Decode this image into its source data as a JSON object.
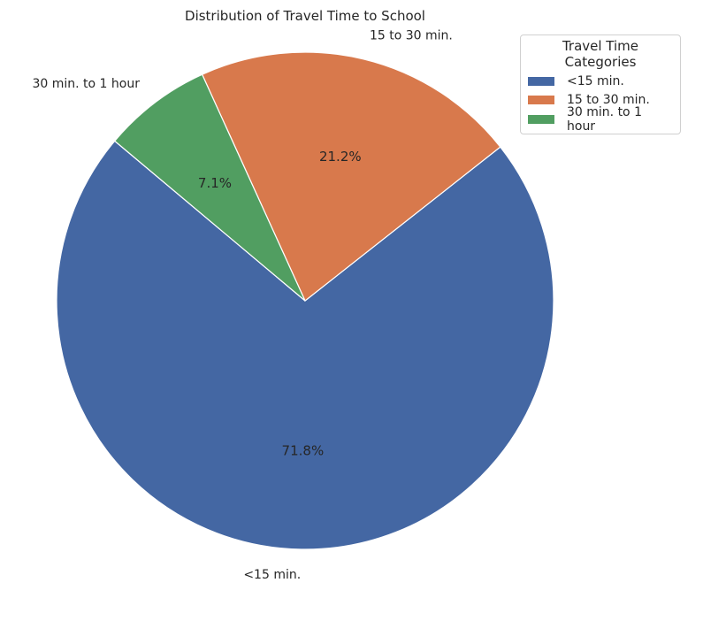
{
  "chart_data": {
    "type": "pie",
    "title": "Distribution of Travel Time to School",
    "categories": [
      "<15 min.",
      "15 to 30 min.",
      "30 min. to 1 hour"
    ],
    "values": [
      71.8,
      21.2,
      7.1
    ],
    "autopct_labels": [
      "71.8%",
      "21.2%",
      "7.1%"
    ],
    "colors": [
      "#4467a3",
      "#d8794c",
      "#519e61"
    ],
    "start_angle_deg": 140,
    "direction": "counterclockwise",
    "legend": {
      "title": "Travel Time Categories",
      "placement": "top-right",
      "entries": [
        "<15 min.",
        "15 to 30 min.",
        "30 min. to 1 hour"
      ]
    }
  }
}
